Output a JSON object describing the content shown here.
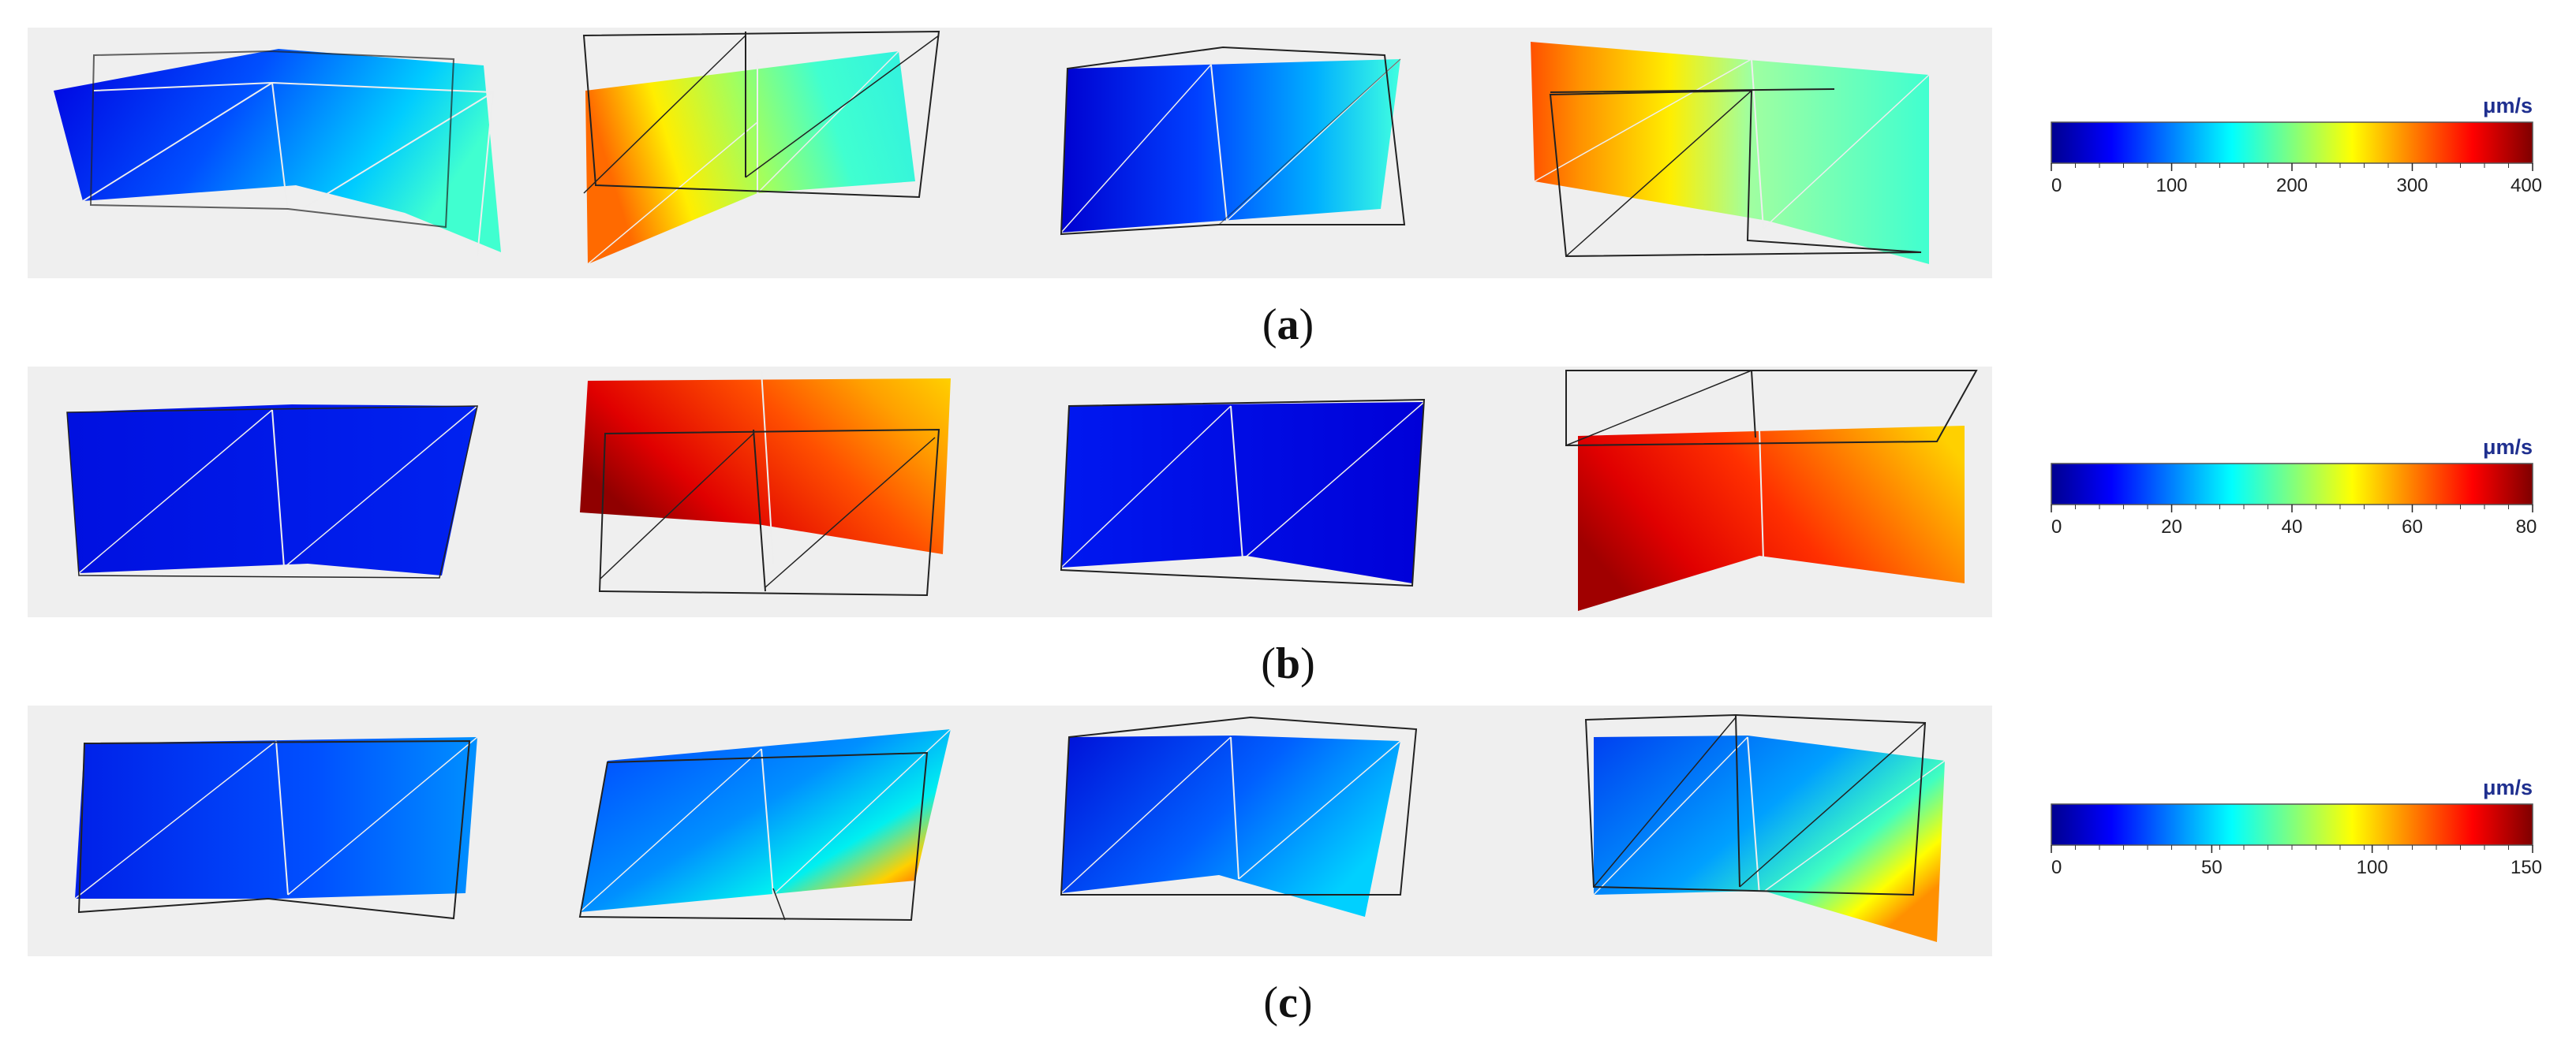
{
  "colors": {
    "background": "#efefef",
    "colormap": [
      "#00008f",
      "#0000ff",
      "#007fff",
      "#00ffff",
      "#7fff7f",
      "#ffff00",
      "#ff7f00",
      "#ff0000",
      "#7f0000"
    ],
    "unit_color": "#1f2f8f"
  },
  "panels": [
    {
      "id": "a",
      "caption_open": "(",
      "caption_letter": "a",
      "caption_close": ")",
      "colorbar": {
        "unit": "μm/s",
        "min": 0,
        "max": 400,
        "ticks": [
          "0",
          "100",
          "200",
          "300",
          "400"
        ]
      }
    },
    {
      "id": "b",
      "caption_open": "(",
      "caption_letter": "b",
      "caption_close": ")",
      "colorbar": {
        "unit": "μm/s",
        "min": 0,
        "max": 80,
        "ticks": [
          "0",
          "20",
          "40",
          "60",
          "80"
        ]
      }
    },
    {
      "id": "c",
      "caption_open": "(",
      "caption_letter": "c",
      "caption_close": ")",
      "colorbar": {
        "unit": "μm/s",
        "min": 0,
        "max": 150,
        "ticks": [
          "0",
          "50",
          "100",
          "150"
        ]
      }
    }
  ]
}
